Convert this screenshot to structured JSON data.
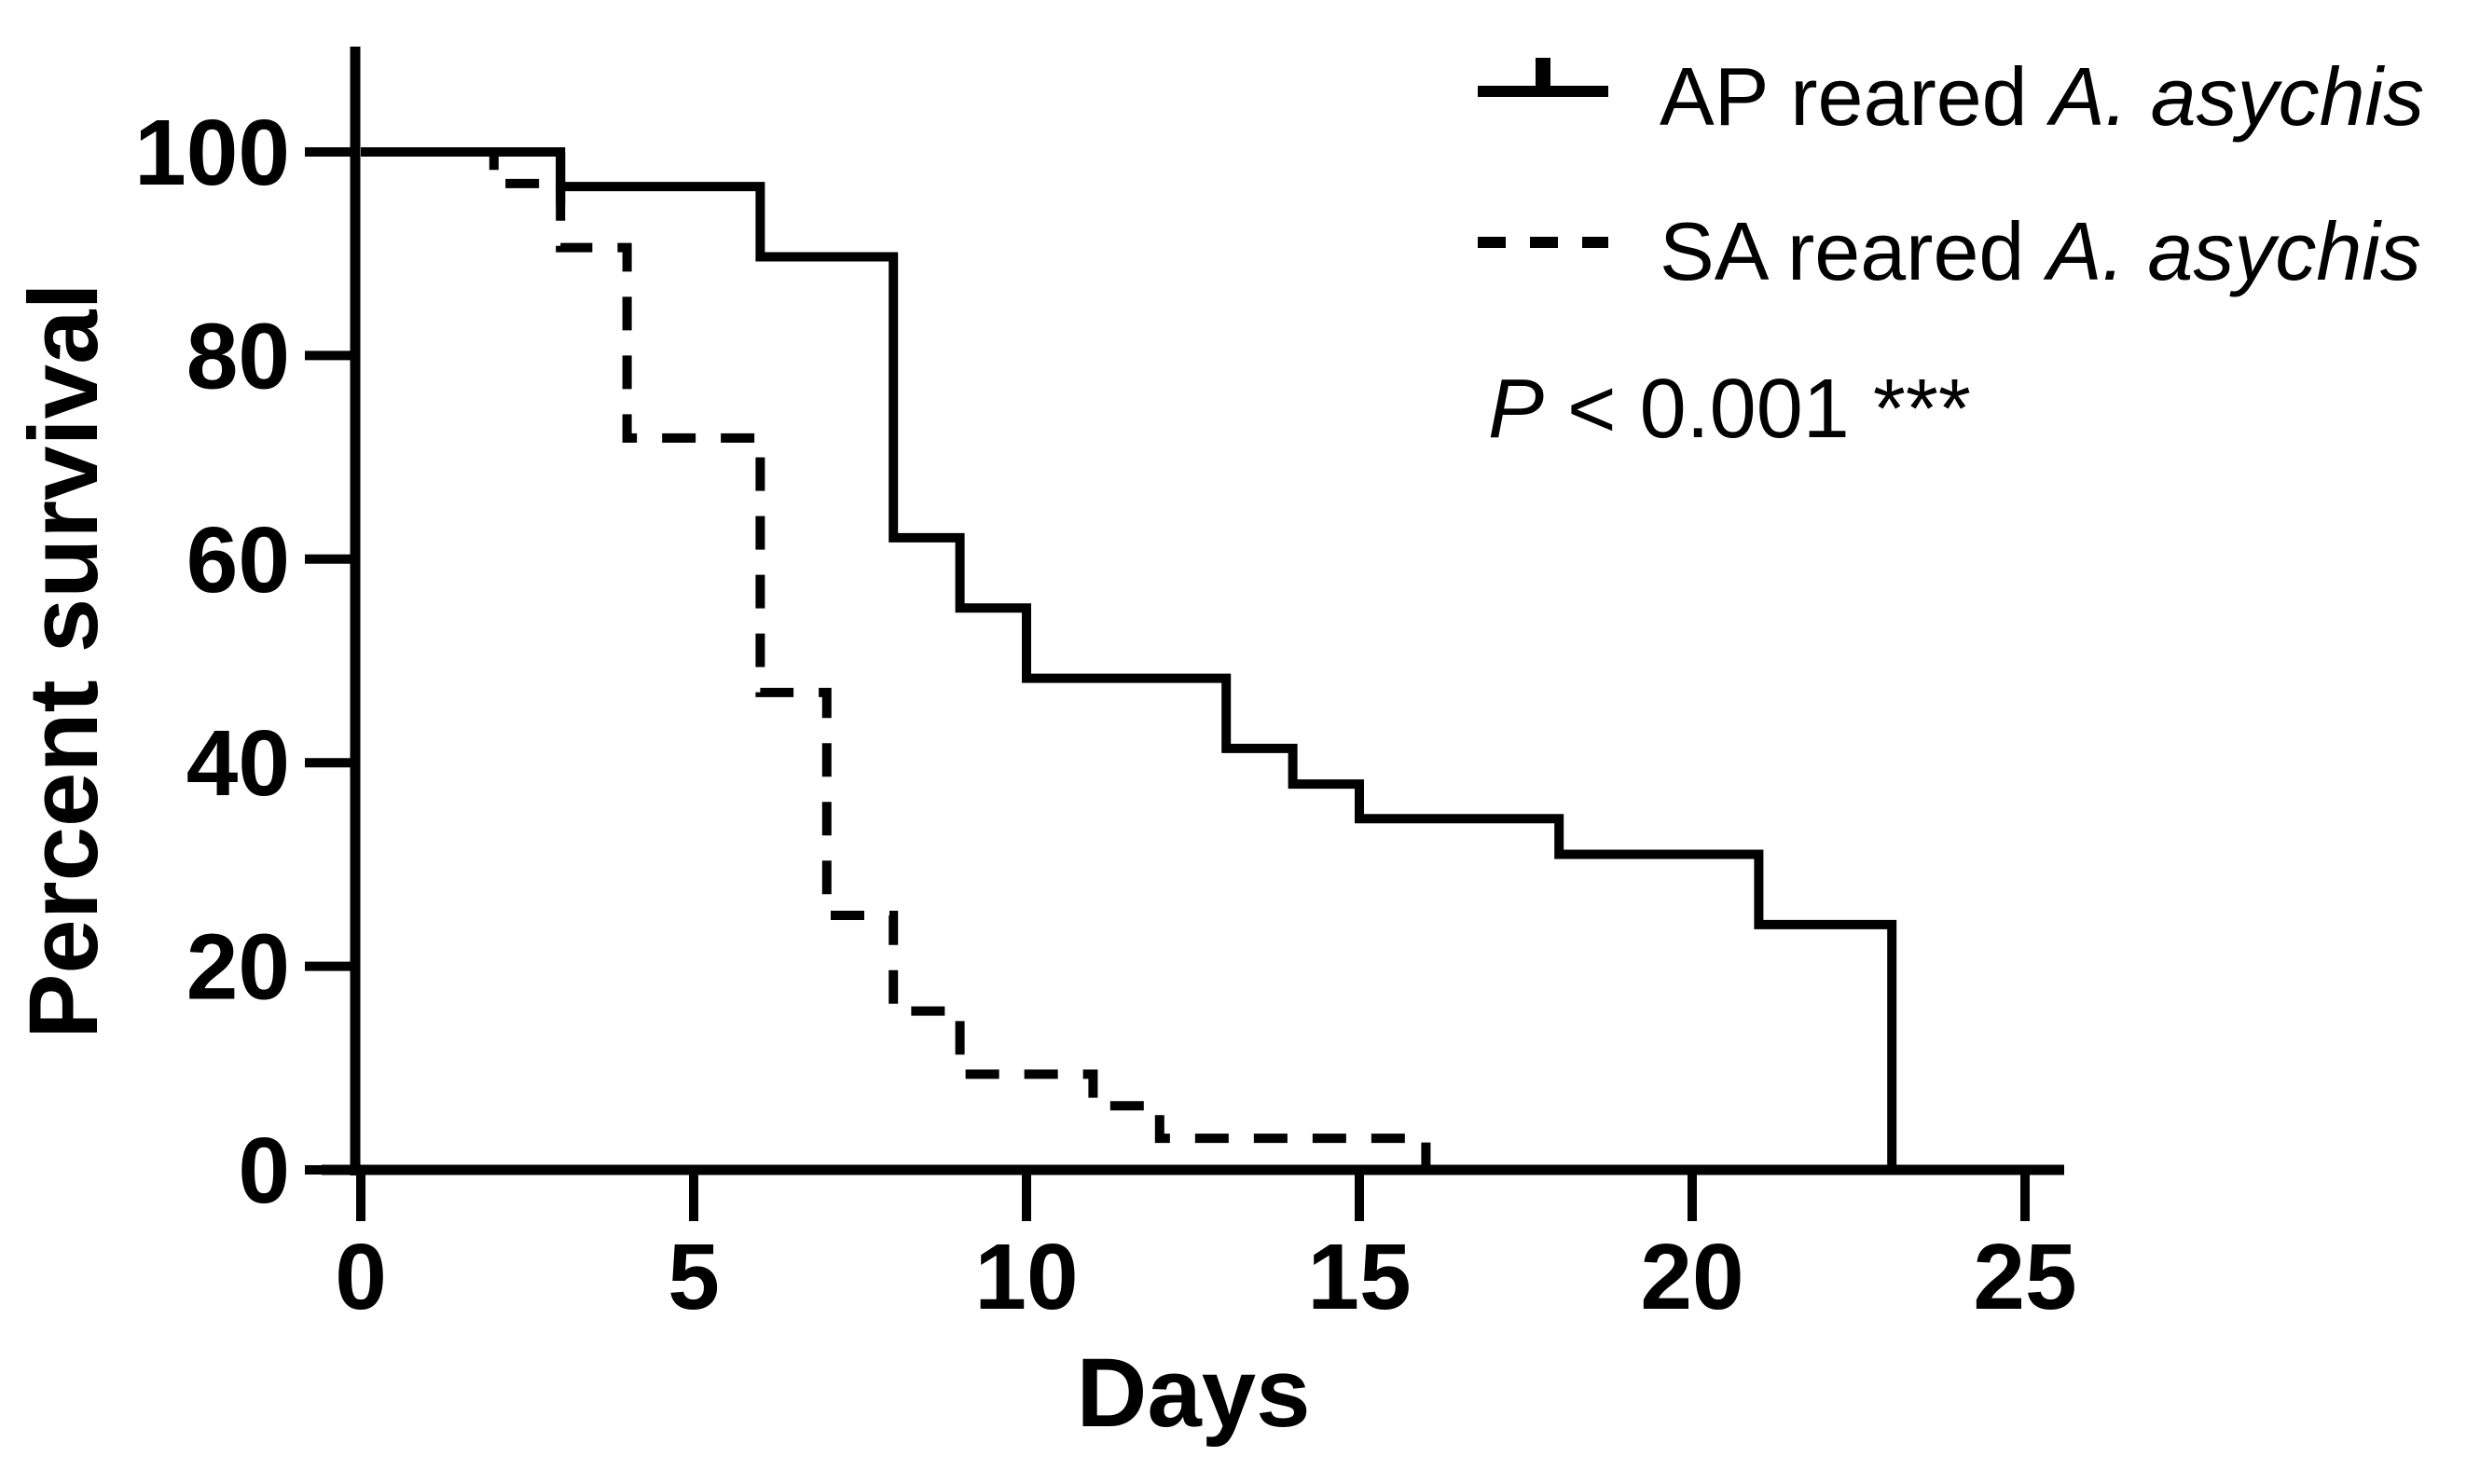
{
  "chart_data": {
    "type": "line",
    "subtype": "kaplan_meier_survival_step",
    "title": "",
    "xlabel": "Days",
    "ylabel": "Percent survival",
    "xlim": [
      0,
      25
    ],
    "ylim": [
      0,
      100
    ],
    "x_ticks": [
      0,
      5,
      10,
      15,
      20,
      25
    ],
    "y_ticks": [
      0,
      20,
      40,
      60,
      80,
      100
    ],
    "grid": false,
    "legend_position": "top-right",
    "line_color": "#000000",
    "annotation": {
      "p_symbol": "P",
      "p_text": " < 0.001 ***"
    },
    "series": [
      {
        "name": "AP reared A. asychis",
        "label_prefix": "AP reared ",
        "label_species": "A. asychis",
        "line_style": "solid",
        "color": "#000000",
        "steps_day_percent": [
          [
            0,
            100
          ],
          [
            3,
            96.6
          ],
          [
            6,
            89.7
          ],
          [
            8,
            62.1
          ],
          [
            9,
            55.2
          ],
          [
            10,
            48.3
          ],
          [
            13,
            41.4
          ],
          [
            14,
            37.9
          ],
          [
            15,
            34.5
          ],
          [
            18,
            31.0
          ],
          [
            21,
            24.1
          ],
          [
            23,
            0
          ]
        ],
        "censor_marks_day_percent": [
          [
            3,
            100
          ]
        ]
      },
      {
        "name": "SA reared A. asychis",
        "label_prefix": "SA reared ",
        "label_species": "A. asychis",
        "line_style": "dashed",
        "color": "#000000",
        "steps_day_percent": [
          [
            0,
            100
          ],
          [
            2,
            96.9
          ],
          [
            3,
            90.6
          ],
          [
            4,
            71.9
          ],
          [
            6,
            46.9
          ],
          [
            7,
            25.0
          ],
          [
            8,
            15.6
          ],
          [
            9,
            9.4
          ],
          [
            11,
            6.3
          ],
          [
            12,
            3.1
          ],
          [
            16,
            0
          ]
        ],
        "censor_marks_day_percent": []
      }
    ]
  }
}
